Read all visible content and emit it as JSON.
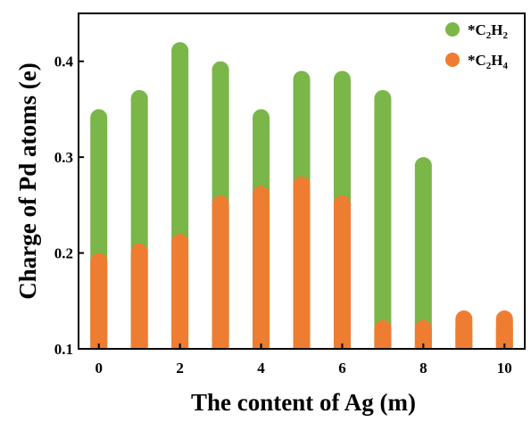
{
  "chart_data": {
    "type": "bar",
    "xlabel": "The content of Ag (m)",
    "ylabel": "Charge of Pd atoms (e)",
    "x": [
      0,
      1,
      2,
      3,
      4,
      5,
      6,
      7,
      8,
      9,
      10
    ],
    "xlim": [
      -0.5,
      10.5
    ],
    "ylim": [
      0.1,
      0.45
    ],
    "xticks": [
      0,
      2,
      4,
      6,
      8,
      10
    ],
    "yticks": [
      0.1,
      0.2,
      0.3,
      0.4
    ],
    "xtick_labels": [
      "0",
      "2",
      "4",
      "6",
      "8",
      "10"
    ],
    "ytick_labels": [
      "0.1",
      "0.2",
      "0.3",
      "0.4"
    ],
    "grid": false,
    "legend_position": "top-right",
    "series": [
      {
        "name": "*C2H2",
        "label_main": "*C",
        "label_sub1": "2",
        "label_mid": "H",
        "label_sub2": "2",
        "color": "#7ab648",
        "values": [
          0.35,
          0.37,
          0.42,
          0.4,
          0.35,
          0.39,
          0.39,
          0.37,
          0.3,
          0.13,
          0.13
        ]
      },
      {
        "name": "*C2H4",
        "label_main": "*C",
        "label_sub1": "2",
        "label_mid": "H",
        "label_sub2": "4",
        "color": "#ee7d31",
        "values": [
          0.2,
          0.21,
          0.22,
          0.26,
          0.27,
          0.28,
          0.26,
          0.13,
          0.13,
          0.14,
          0.14
        ]
      }
    ]
  }
}
